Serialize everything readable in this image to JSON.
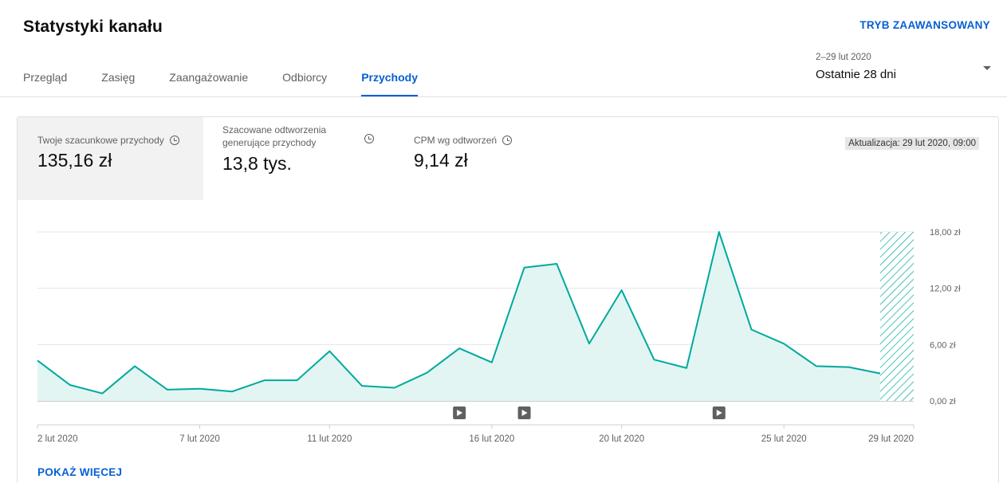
{
  "header": {
    "title": "Statystyki kanału",
    "advanced_mode": "TRYB ZAAWANSOWANY"
  },
  "tabs": [
    {
      "label": "Przegląd",
      "active": false
    },
    {
      "label": "Zasięg",
      "active": false
    },
    {
      "label": "Zaangażowanie",
      "active": false
    },
    {
      "label": "Odbiorcy",
      "active": false
    },
    {
      "label": "Przychody",
      "active": true
    }
  ],
  "date_range": {
    "range": "2–29 lut 2020",
    "label": "Ostatnie 28 dni"
  },
  "metrics": [
    {
      "label": "Twoje szacunkowe przychody",
      "value": "135,16 zł",
      "selected": true
    },
    {
      "label": "Szacowane odtworzenia generujące przychody",
      "value": "13,8 tys.",
      "selected": false
    },
    {
      "label": "CPM wg odtworzeń",
      "value": "9,14 zł",
      "selected": false
    }
  ],
  "update_badge": "Aktualizacja: 29 lut 2020, 09:00",
  "show_more": "POKAŻ WIĘCEJ",
  "colors": {
    "accent": "#065fd4",
    "series_line": "#00a99d",
    "series_fill": "#e2f5f3"
  },
  "chart_data": {
    "type": "area",
    "x": [
      "2 lut 2020",
      "3 lut 2020",
      "4 lut 2020",
      "5 lut 2020",
      "6 lut 2020",
      "7 lut 2020",
      "8 lut 2020",
      "9 lut 2020",
      "10 lut 2020",
      "11 lut 2020",
      "12 lut 2020",
      "13 lut 2020",
      "14 lut 2020",
      "15 lut 2020",
      "16 lut 2020",
      "17 lut 2020",
      "18 lut 2020",
      "19 lut 2020",
      "20 lut 2020",
      "21 lut 2020",
      "22 lut 2020",
      "23 lut 2020",
      "24 lut 2020",
      "25 lut 2020",
      "26 lut 2020",
      "27 lut 2020",
      "28 lut 2020",
      "29 lut 2020"
    ],
    "series": [
      {
        "values": [
          4.3,
          1.7,
          0.8,
          3.7,
          1.2,
          1.3,
          1.0,
          2.2,
          2.2,
          5.3,
          1.6,
          1.4,
          3.0,
          5.6,
          4.1,
          14.2,
          14.6,
          6.1,
          11.8,
          4.4,
          3.5,
          18.0,
          7.6,
          6.1,
          3.7,
          3.6,
          2.9,
          null
        ]
      }
    ],
    "incomplete_last_point": true,
    "xticks": [
      {
        "x": "2 lut 2020",
        "label": "2 lut 2020"
      },
      {
        "x": "7 lut 2020",
        "label": "7 lut 2020"
      },
      {
        "x": "11 lut 2020",
        "label": "11 lut 2020"
      },
      {
        "x": "16 lut 2020",
        "label": "16 lut 2020"
      },
      {
        "x": "20 lut 2020",
        "label": "20 lut 2020"
      },
      {
        "x": "25 lut 2020",
        "label": "25 lut 2020"
      },
      {
        "x": "29 lut 2020",
        "label": "29 lut 2020"
      }
    ],
    "yticks": [
      {
        "value": 0,
        "label": "0,00 zł"
      },
      {
        "value": 6,
        "label": "6,00 zł"
      },
      {
        "value": 12,
        "label": "12,00 zł"
      },
      {
        "value": 18,
        "label": "18,00 zł"
      }
    ],
    "ylim": [
      0,
      18
    ],
    "video_markers": [
      "15 lut 2020",
      "17 lut 2020",
      "23 lut 2020"
    ],
    "grid": true
  }
}
